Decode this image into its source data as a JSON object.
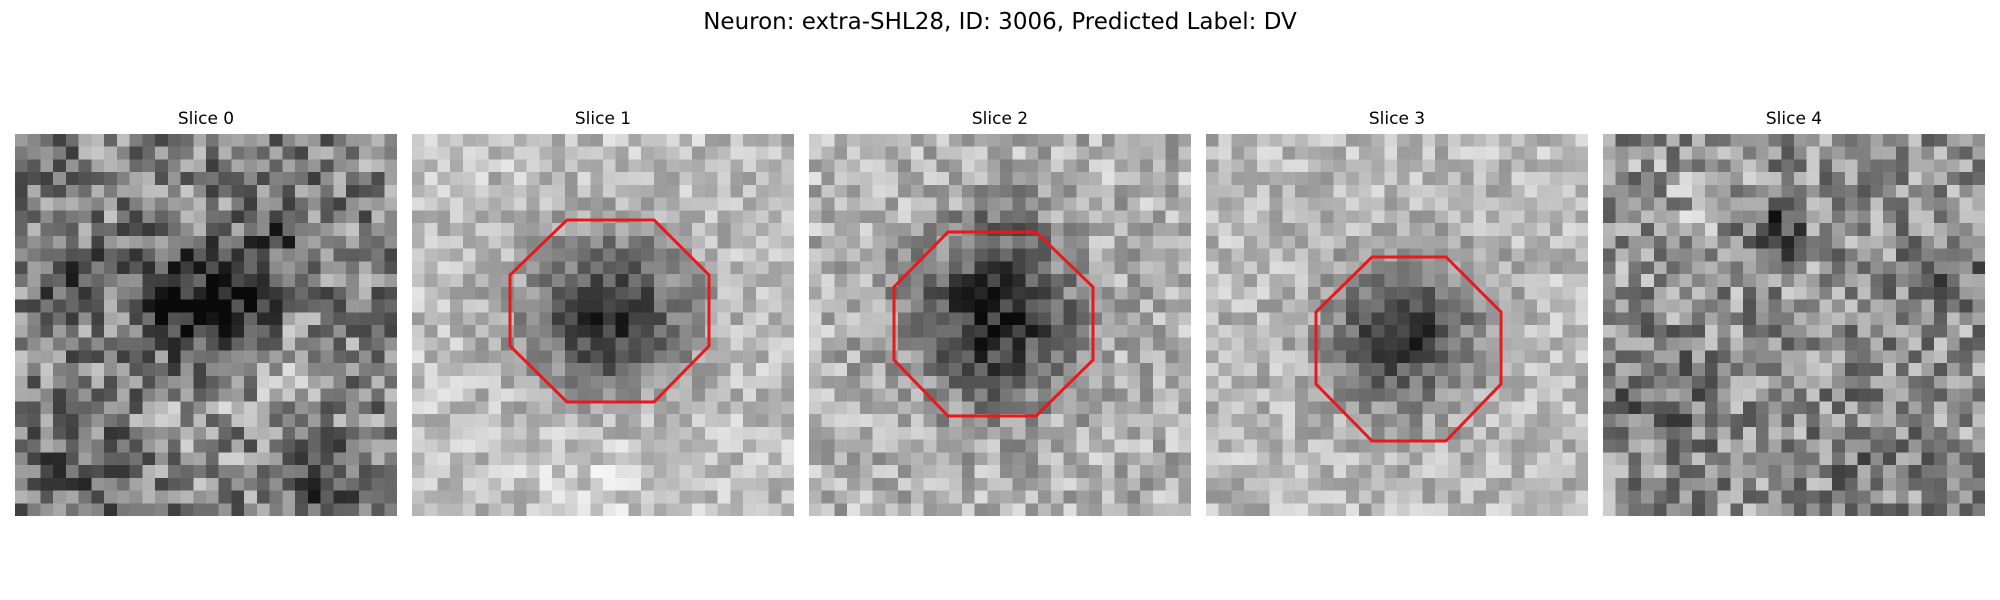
{
  "title": "Neuron: extra-SHL28, ID: 3006, Predicted Label: DV",
  "colors": {
    "outline": "#e8191d",
    "background": "#ffffff"
  },
  "colormap": "grayscale",
  "slices": [
    {
      "label": "Slice 0",
      "has_outline": false
    },
    {
      "label": "Slice 1",
      "has_outline": true
    },
    {
      "label": "Slice 2",
      "has_outline": true
    },
    {
      "label": "Slice 3",
      "has_outline": true
    },
    {
      "label": "Slice 4",
      "has_outline": false
    }
  ]
}
